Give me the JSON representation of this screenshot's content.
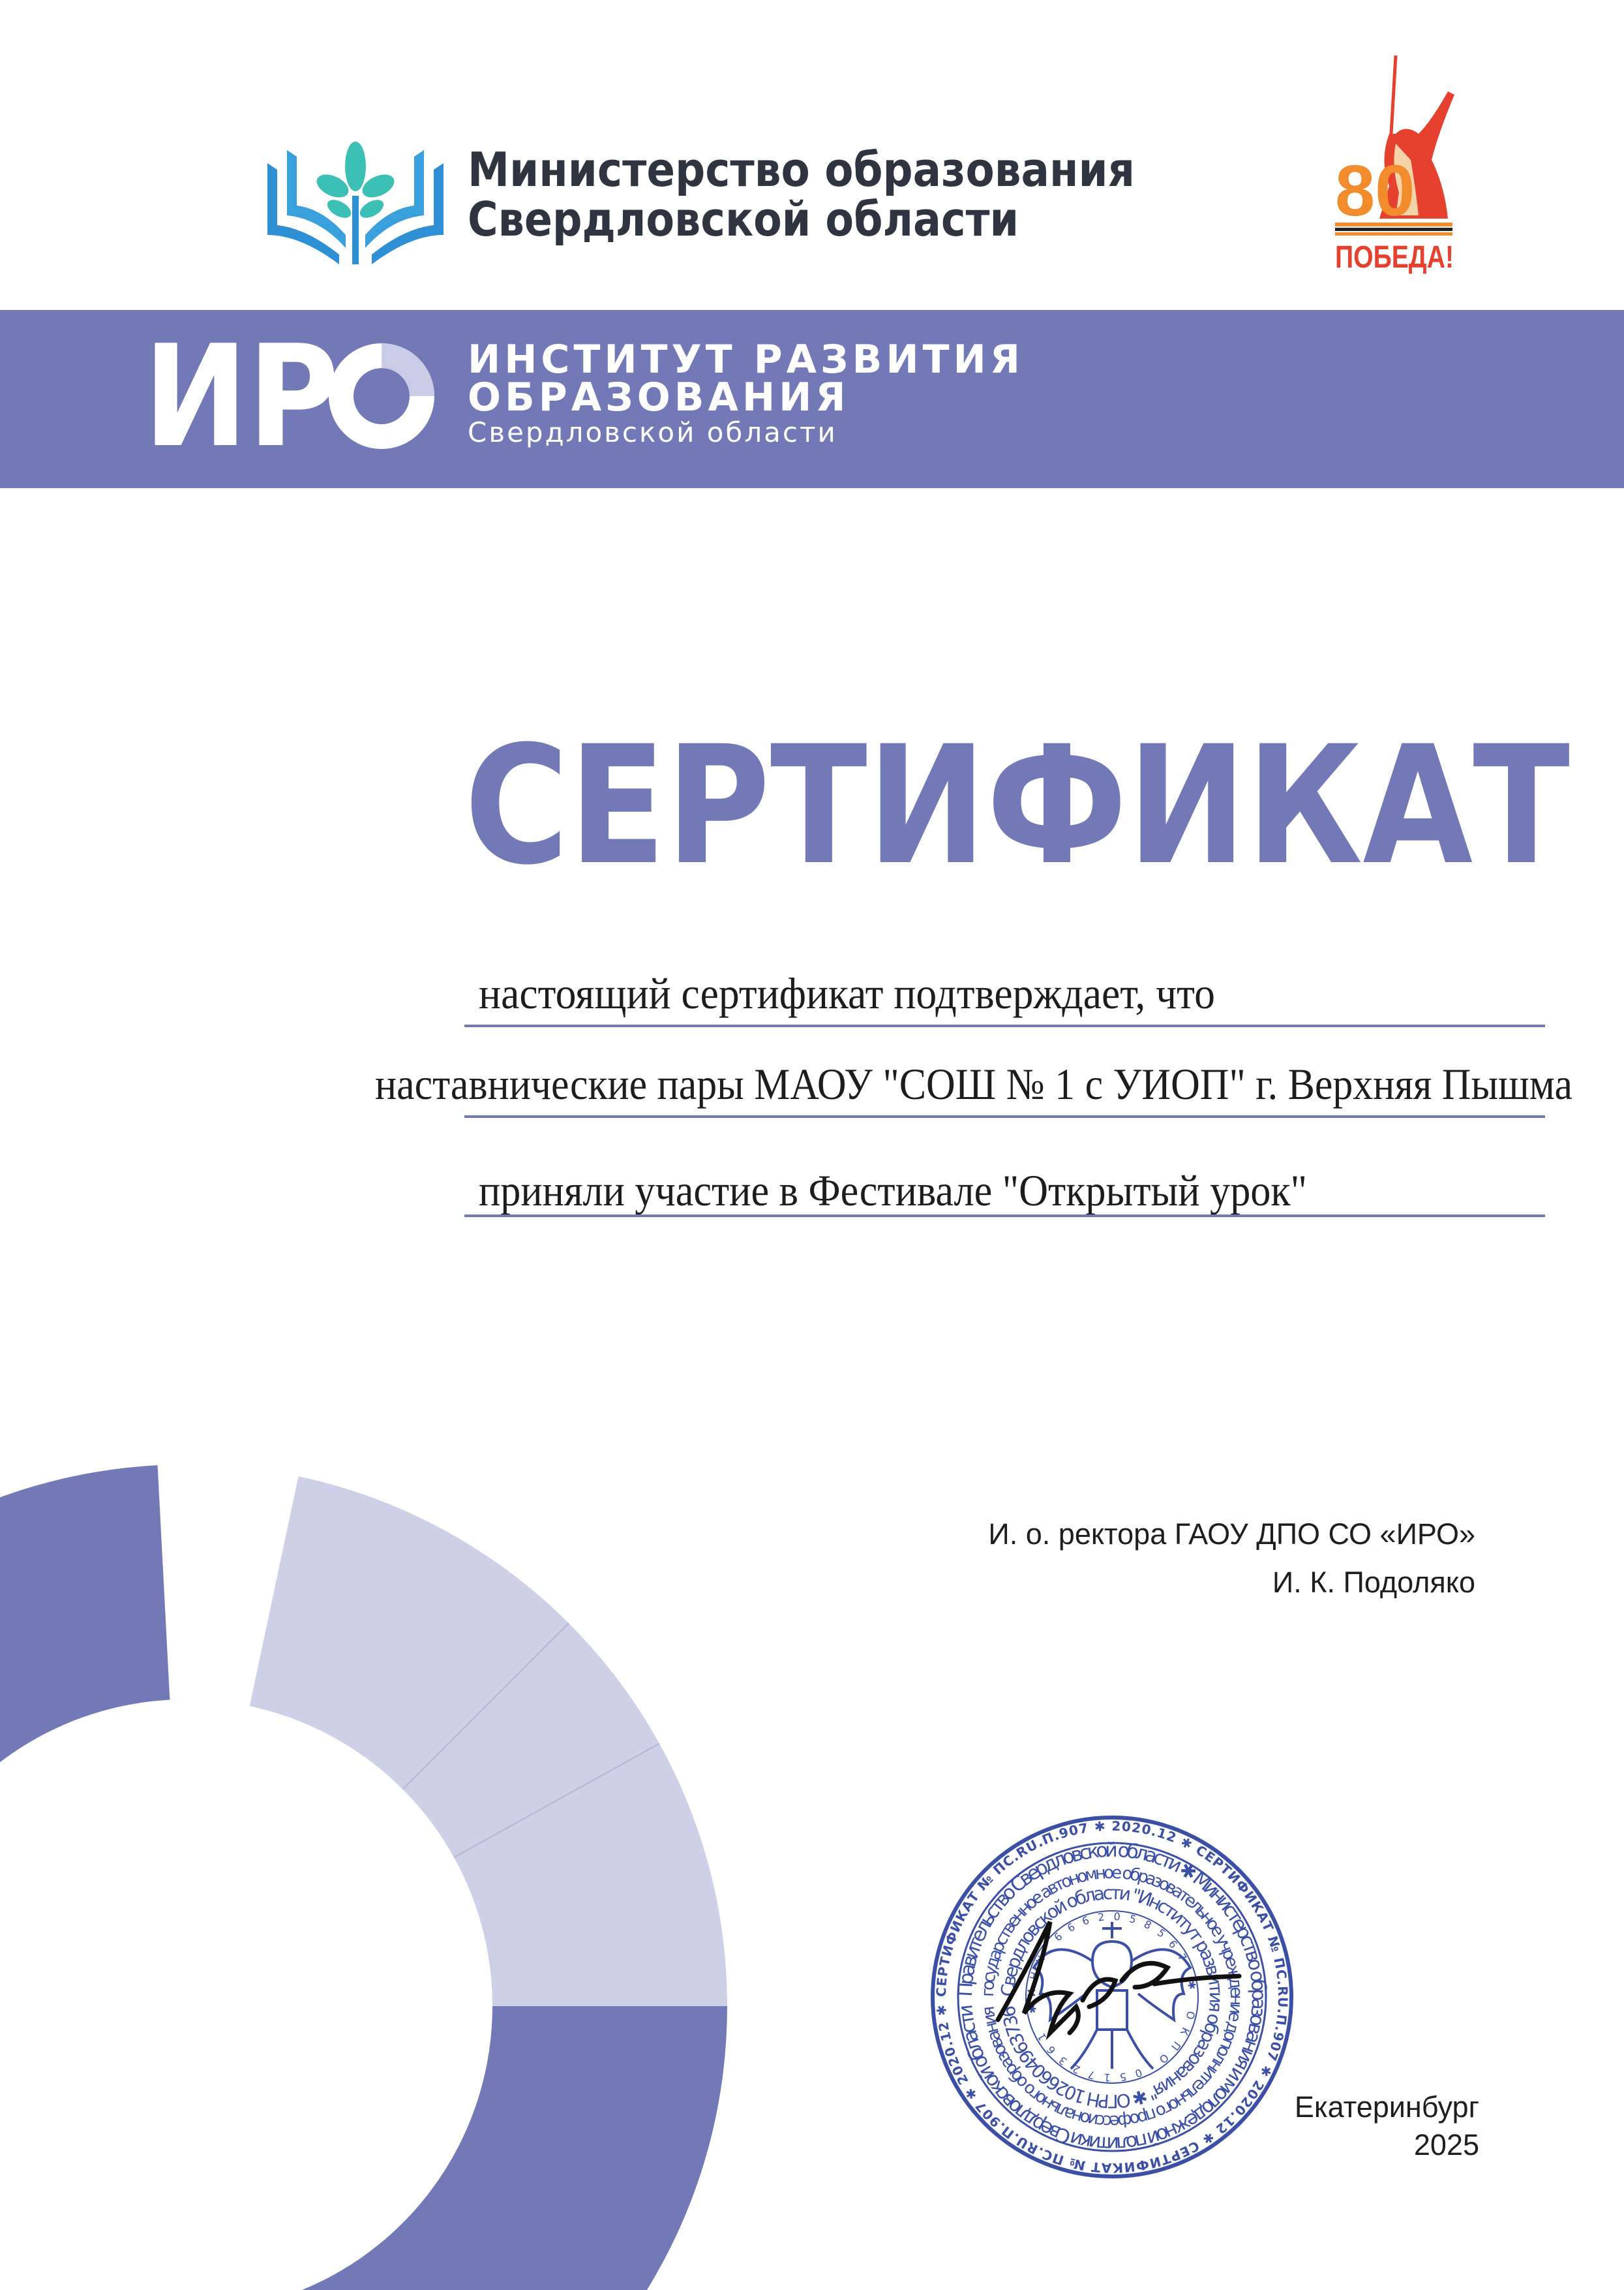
{
  "header": {
    "ministry_logo_icon": "book-tree-icon",
    "ministry_line1": "Министерство образования",
    "ministry_line2": "Свердловской области",
    "victory_logo": {
      "number": "80",
      "text": "ПОБЕДА!",
      "colors": [
        "#e6402e",
        "#f28b2c"
      ]
    }
  },
  "band": {
    "color": "#7378b6",
    "logo_text": "ИРО",
    "name_line1": "ИНСТИТУТ РАЗВИТИЯ",
    "name_line2": "ОБРАЗОВАНИЯ",
    "name_line3": "Свердловской области"
  },
  "certificate": {
    "title": "СЕРТИФИКАТ",
    "title_color": "#7378b6",
    "lines": [
      "настоящий сертификат подтверждает, что",
      "наставнические пары МАОУ \"СОШ № 1 с УИОП\" г. Верхняя Пышма",
      "приняли участие в Фестивале \"Открытый урок\""
    ]
  },
  "signature": {
    "position": "И. о. ректора ГАОУ ДПО СО «ИРО»",
    "name": "И. К. Подоляко",
    "city": "Екатеринбург",
    "year": "2025"
  },
  "stamp": {
    "color": "#3b4fa6",
    "outer_ring": "СЕРТИФИКАТ № ПС.RU.П.907 ✱ 2020.12 ✱ СЕРТИФИКАТ № ПС.RU.П.907 ✱ 2020.12 ✱ СЕРТИФИКАТ № ПС.RU.П.907 ✱ 2020.12 ✱",
    "ring2": "Правительство Свердловской области ✱ Министерство образования и молодежной политики Свердловской области",
    "ring3": "государственное автономное образовательное учреждение дополнительного профессионального образования",
    "ring4": "Свердловской области \"Институт развития образования\" ✱ ОГРН 1026604963736",
    "inner": "ИНН 6662058567 ✱ ОКПО 05172361 ✱"
  },
  "decor": {
    "dark": "#7378b6",
    "light": "#cdd0e6"
  }
}
